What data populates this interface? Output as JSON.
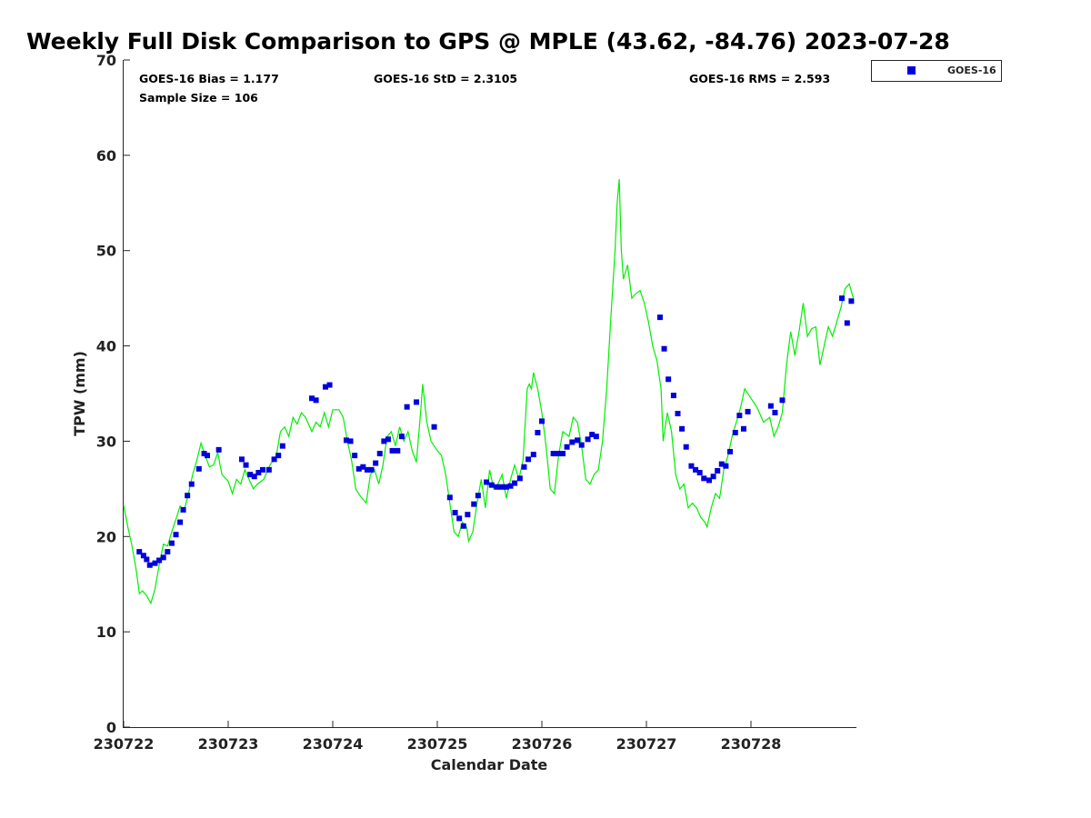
{
  "chart_data": {
    "type": "scatter",
    "title": "Weekly Full Disk Comparison to GPS @ MPLE (43.62, -84.76) 2023-07-28",
    "xlabel": "Calendar Date",
    "ylabel": "TPW (mm)",
    "xlim": [
      0,
      7
    ],
    "ylim": [
      0,
      70
    ],
    "xticks": [
      {
        "value": 0,
        "label": "230722"
      },
      {
        "value": 1,
        "label": "230723"
      },
      {
        "value": 2,
        "label": "230724"
      },
      {
        "value": 3,
        "label": "230725"
      },
      {
        "value": 4,
        "label": "230726"
      },
      {
        "value": 5,
        "label": "230727"
      },
      {
        "value": 6,
        "label": "230728"
      }
    ],
    "yticks": [
      0,
      10,
      20,
      30,
      40,
      50,
      60,
      70
    ],
    "stats": {
      "bias": "GOES-16 Bias = 1.177",
      "std": "GOES-16 StD = 2.3105",
      "rms": "GOES-16 RMS = 2.593",
      "sample": "Sample Size = 106"
    },
    "legend": {
      "position": "top-right",
      "label": "GOES-16"
    },
    "colors": {
      "goes": "#0000dd",
      "gps": "#00ee00"
    },
    "series": [
      {
        "name": "GPS",
        "style": "line",
        "points": [
          [
            0.0,
            23.3
          ],
          [
            0.04,
            21.0
          ],
          [
            0.08,
            19.0
          ],
          [
            0.12,
            16.5
          ],
          [
            0.15,
            14.0
          ],
          [
            0.18,
            14.3
          ],
          [
            0.22,
            13.8
          ],
          [
            0.26,
            13.0
          ],
          [
            0.3,
            14.5
          ],
          [
            0.34,
            17.0
          ],
          [
            0.38,
            19.2
          ],
          [
            0.42,
            19.0
          ],
          [
            0.46,
            20.5
          ],
          [
            0.5,
            21.8
          ],
          [
            0.54,
            23.2
          ],
          [
            0.58,
            22.8
          ],
          [
            0.62,
            24.5
          ],
          [
            0.66,
            26.5
          ],
          [
            0.7,
            28.0
          ],
          [
            0.74,
            29.8
          ],
          [
            0.78,
            28.5
          ],
          [
            0.82,
            27.3
          ],
          [
            0.86,
            27.5
          ],
          [
            0.9,
            28.8
          ],
          [
            0.94,
            26.5
          ],
          [
            1.0,
            25.8
          ],
          [
            1.04,
            24.5
          ],
          [
            1.08,
            26.0
          ],
          [
            1.12,
            25.5
          ],
          [
            1.16,
            27.0
          ],
          [
            1.2,
            26.0
          ],
          [
            1.24,
            25.0
          ],
          [
            1.28,
            25.5
          ],
          [
            1.34,
            26.0
          ],
          [
            1.4,
            27.5
          ],
          [
            1.46,
            28.5
          ],
          [
            1.5,
            31.0
          ],
          [
            1.54,
            31.5
          ],
          [
            1.58,
            30.5
          ],
          [
            1.62,
            32.5
          ],
          [
            1.66,
            31.8
          ],
          [
            1.7,
            33.0
          ],
          [
            1.74,
            32.5
          ],
          [
            1.8,
            31.0
          ],
          [
            1.84,
            32.0
          ],
          [
            1.88,
            31.5
          ],
          [
            1.92,
            33.0
          ],
          [
            1.96,
            31.5
          ],
          [
            2.0,
            33.3
          ],
          [
            2.06,
            33.3
          ],
          [
            2.1,
            32.5
          ],
          [
            2.14,
            30.0
          ],
          [
            2.18,
            28.0
          ],
          [
            2.22,
            25.0
          ],
          [
            2.26,
            24.3
          ],
          [
            2.32,
            23.5
          ],
          [
            2.36,
            26.5
          ],
          [
            2.4,
            27.0
          ],
          [
            2.44,
            25.5
          ],
          [
            2.48,
            27.5
          ],
          [
            2.52,
            30.5
          ],
          [
            2.56,
            31.0
          ],
          [
            2.6,
            29.5
          ],
          [
            2.64,
            31.5
          ],
          [
            2.68,
            30.0
          ],
          [
            2.72,
            31.0
          ],
          [
            2.76,
            29.0
          ],
          [
            2.8,
            27.8
          ],
          [
            2.84,
            33.0
          ],
          [
            2.86,
            36.0
          ],
          [
            2.9,
            32.0
          ],
          [
            2.94,
            30.0
          ],
          [
            3.0,
            29.0
          ],
          [
            3.04,
            28.5
          ],
          [
            3.08,
            26.5
          ],
          [
            3.12,
            23.5
          ],
          [
            3.16,
            20.5
          ],
          [
            3.2,
            20.0
          ],
          [
            3.24,
            21.5
          ],
          [
            3.28,
            21.0
          ],
          [
            3.3,
            19.5
          ],
          [
            3.34,
            20.5
          ],
          [
            3.38,
            23.5
          ],
          [
            3.42,
            26.0
          ],
          [
            3.46,
            23.0
          ],
          [
            3.5,
            27.0
          ],
          [
            3.54,
            25.0
          ],
          [
            3.58,
            25.5
          ],
          [
            3.62,
            26.5
          ],
          [
            3.66,
            24.0
          ],
          [
            3.7,
            26.0
          ],
          [
            3.74,
            27.5
          ],
          [
            3.78,
            26.0
          ],
          [
            3.82,
            28.0
          ],
          [
            3.86,
            35.5
          ],
          [
            3.88,
            36.0
          ],
          [
            3.9,
            35.5
          ],
          [
            3.92,
            37.2
          ],
          [
            3.96,
            35.5
          ],
          [
            4.0,
            33.0
          ],
          [
            4.04,
            29.5
          ],
          [
            4.08,
            25.0
          ],
          [
            4.12,
            24.5
          ],
          [
            4.16,
            28.5
          ],
          [
            4.2,
            31.0
          ],
          [
            4.26,
            30.5
          ],
          [
            4.3,
            32.5
          ],
          [
            4.34,
            32.0
          ],
          [
            4.38,
            29.5
          ],
          [
            4.42,
            26.0
          ],
          [
            4.46,
            25.5
          ],
          [
            4.5,
            26.5
          ],
          [
            4.54,
            27.0
          ],
          [
            4.58,
            30.0
          ],
          [
            4.62,
            35.5
          ],
          [
            4.66,
            43.0
          ],
          [
            4.7,
            50.0
          ],
          [
            4.72,
            55.0
          ],
          [
            4.74,
            57.5
          ],
          [
            4.76,
            50.0
          ],
          [
            4.78,
            47.0
          ],
          [
            4.82,
            48.5
          ],
          [
            4.86,
            45.0
          ],
          [
            4.9,
            45.5
          ],
          [
            4.94,
            45.8
          ],
          [
            4.98,
            44.5
          ],
          [
            5.02,
            42.5
          ],
          [
            5.06,
            40.0
          ],
          [
            5.1,
            38.5
          ],
          [
            5.14,
            35.5
          ],
          [
            5.16,
            30.0
          ],
          [
            5.2,
            33.0
          ],
          [
            5.24,
            31.0
          ],
          [
            5.28,
            26.5
          ],
          [
            5.32,
            25.0
          ],
          [
            5.36,
            25.5
          ],
          [
            5.4,
            23.0
          ],
          [
            5.44,
            23.5
          ],
          [
            5.48,
            23.0
          ],
          [
            5.52,
            22.0
          ],
          [
            5.56,
            21.5
          ],
          [
            5.58,
            21.0
          ],
          [
            5.62,
            23.0
          ],
          [
            5.66,
            24.5
          ],
          [
            5.7,
            24.0
          ],
          [
            5.74,
            27.0
          ],
          [
            5.78,
            28.5
          ],
          [
            5.82,
            30.5
          ],
          [
            5.86,
            32.0
          ],
          [
            5.9,
            33.5
          ],
          [
            5.94,
            35.5
          ],
          [
            6.0,
            34.5
          ],
          [
            6.06,
            33.5
          ],
          [
            6.12,
            32.0
          ],
          [
            6.18,
            32.5
          ],
          [
            6.22,
            30.5
          ],
          [
            6.26,
            31.5
          ],
          [
            6.3,
            33.0
          ],
          [
            6.34,
            38.0
          ],
          [
            6.38,
            41.5
          ],
          [
            6.42,
            39.0
          ],
          [
            6.46,
            41.5
          ],
          [
            6.5,
            44.5
          ],
          [
            6.54,
            41.0
          ],
          [
            6.58,
            41.8
          ],
          [
            6.62,
            42.0
          ],
          [
            6.66,
            38.0
          ],
          [
            6.7,
            40.0
          ],
          [
            6.74,
            42.0
          ],
          [
            6.78,
            41.0
          ],
          [
            6.82,
            42.5
          ],
          [
            6.86,
            44.0
          ],
          [
            6.9,
            46.0
          ],
          [
            6.94,
            46.5
          ],
          [
            6.98,
            45.0
          ]
        ]
      },
      {
        "name": "GOES-16",
        "style": "marker",
        "points": [
          [
            0.15,
            18.4
          ],
          [
            0.19,
            18.0
          ],
          [
            0.22,
            17.6
          ],
          [
            0.25,
            17.0
          ],
          [
            0.3,
            17.2
          ],
          [
            0.34,
            17.5
          ],
          [
            0.38,
            17.8
          ],
          [
            0.42,
            18.4
          ],
          [
            0.46,
            19.3
          ],
          [
            0.5,
            20.2
          ],
          [
            0.54,
            21.5
          ],
          [
            0.57,
            22.8
          ],
          [
            0.61,
            24.3
          ],
          [
            0.65,
            25.5
          ],
          [
            0.72,
            27.1
          ],
          [
            0.77,
            28.7
          ],
          [
            0.8,
            28.5
          ],
          [
            0.91,
            29.1
          ],
          [
            1.13,
            28.1
          ],
          [
            1.17,
            27.5
          ],
          [
            1.21,
            26.5
          ],
          [
            1.25,
            26.3
          ],
          [
            1.29,
            26.7
          ],
          [
            1.33,
            27.0
          ],
          [
            1.39,
            27.0
          ],
          [
            1.44,
            28.1
          ],
          [
            1.48,
            28.5
          ],
          [
            1.52,
            29.5
          ],
          [
            1.8,
            34.5
          ],
          [
            1.84,
            34.3
          ],
          [
            1.93,
            35.7
          ],
          [
            1.97,
            35.9
          ],
          [
            2.13,
            30.1
          ],
          [
            2.17,
            30.0
          ],
          [
            2.21,
            28.5
          ],
          [
            2.25,
            27.1
          ],
          [
            2.29,
            27.3
          ],
          [
            2.33,
            27.0
          ],
          [
            2.37,
            27.0
          ],
          [
            2.41,
            27.7
          ],
          [
            2.45,
            28.7
          ],
          [
            2.49,
            30.0
          ],
          [
            2.53,
            30.2
          ],
          [
            2.57,
            29.0
          ],
          [
            2.62,
            29.0
          ],
          [
            2.66,
            30.5
          ],
          [
            2.71,
            33.6
          ],
          [
            2.8,
            34.1
          ],
          [
            2.97,
            31.5
          ],
          [
            3.12,
            24.1
          ],
          [
            3.17,
            22.5
          ],
          [
            3.21,
            21.9
          ],
          [
            3.25,
            21.1
          ],
          [
            3.29,
            22.3
          ],
          [
            3.35,
            23.4
          ],
          [
            3.39,
            24.3
          ],
          [
            3.47,
            25.7
          ],
          [
            3.52,
            25.4
          ],
          [
            3.57,
            25.2
          ],
          [
            3.62,
            25.2
          ],
          [
            3.66,
            25.2
          ],
          [
            3.7,
            25.3
          ],
          [
            3.74,
            25.6
          ],
          [
            3.79,
            26.1
          ],
          [
            3.83,
            27.3
          ],
          [
            3.87,
            28.1
          ],
          [
            3.92,
            28.6
          ],
          [
            3.96,
            30.9
          ],
          [
            4.0,
            32.1
          ],
          [
            4.11,
            28.7
          ],
          [
            4.16,
            28.7
          ],
          [
            4.2,
            28.7
          ],
          [
            4.24,
            29.4
          ],
          [
            4.29,
            29.9
          ],
          [
            4.34,
            30.1
          ],
          [
            4.38,
            29.6
          ],
          [
            4.44,
            30.2
          ],
          [
            4.48,
            30.7
          ],
          [
            4.52,
            30.5
          ],
          [
            5.13,
            43.0
          ],
          [
            5.17,
            39.7
          ],
          [
            5.21,
            36.5
          ],
          [
            5.26,
            34.8
          ],
          [
            5.3,
            32.9
          ],
          [
            5.34,
            31.3
          ],
          [
            5.38,
            29.4
          ],
          [
            5.43,
            27.4
          ],
          [
            5.47,
            27.0
          ],
          [
            5.51,
            26.7
          ],
          [
            5.55,
            26.1
          ],
          [
            5.6,
            25.9
          ],
          [
            5.64,
            26.3
          ],
          [
            5.68,
            26.9
          ],
          [
            5.72,
            27.6
          ],
          [
            5.76,
            27.4
          ],
          [
            5.8,
            28.9
          ],
          [
            5.85,
            30.9
          ],
          [
            5.89,
            32.7
          ],
          [
            5.93,
            31.3
          ],
          [
            5.97,
            33.1
          ],
          [
            6.19,
            33.7
          ],
          [
            6.23,
            33.0
          ],
          [
            6.3,
            34.3
          ],
          [
            6.87,
            45.0
          ],
          [
            6.92,
            42.4
          ],
          [
            6.96,
            44.7
          ]
        ]
      }
    ]
  }
}
